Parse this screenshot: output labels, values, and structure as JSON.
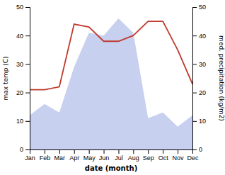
{
  "chart_data": {
    "type": "line",
    "categories": [
      "Jan",
      "Feb",
      "Mar",
      "Apr",
      "May",
      "Jun",
      "Jul",
      "Aug",
      "Sep",
      "Oct",
      "Nov",
      "Dec"
    ],
    "xlabel": "date (month)",
    "ylabel": "max temp (C)",
    "y2label": "med. precipitation (kg/m2)",
    "ylim": [
      0,
      50
    ],
    "yticks": [
      0,
      10,
      20,
      30,
      40,
      50
    ],
    "y2lim": [
      0,
      50
    ],
    "y2ticks": [
      0,
      10,
      20,
      30,
      40,
      50
    ],
    "grid": false,
    "series": [
      {
        "type": "area",
        "axis": "y2",
        "color": "#c8d0f0",
        "values": [
          12,
          16,
          13,
          29,
          41,
          40,
          46,
          41,
          11,
          13,
          8,
          12
        ]
      },
      {
        "type": "line",
        "color": "#c0392b",
        "values": [
          21,
          21,
          22,
          44,
          43,
          38,
          38,
          40,
          45,
          45,
          35,
          23
        ]
      }
    ]
  }
}
